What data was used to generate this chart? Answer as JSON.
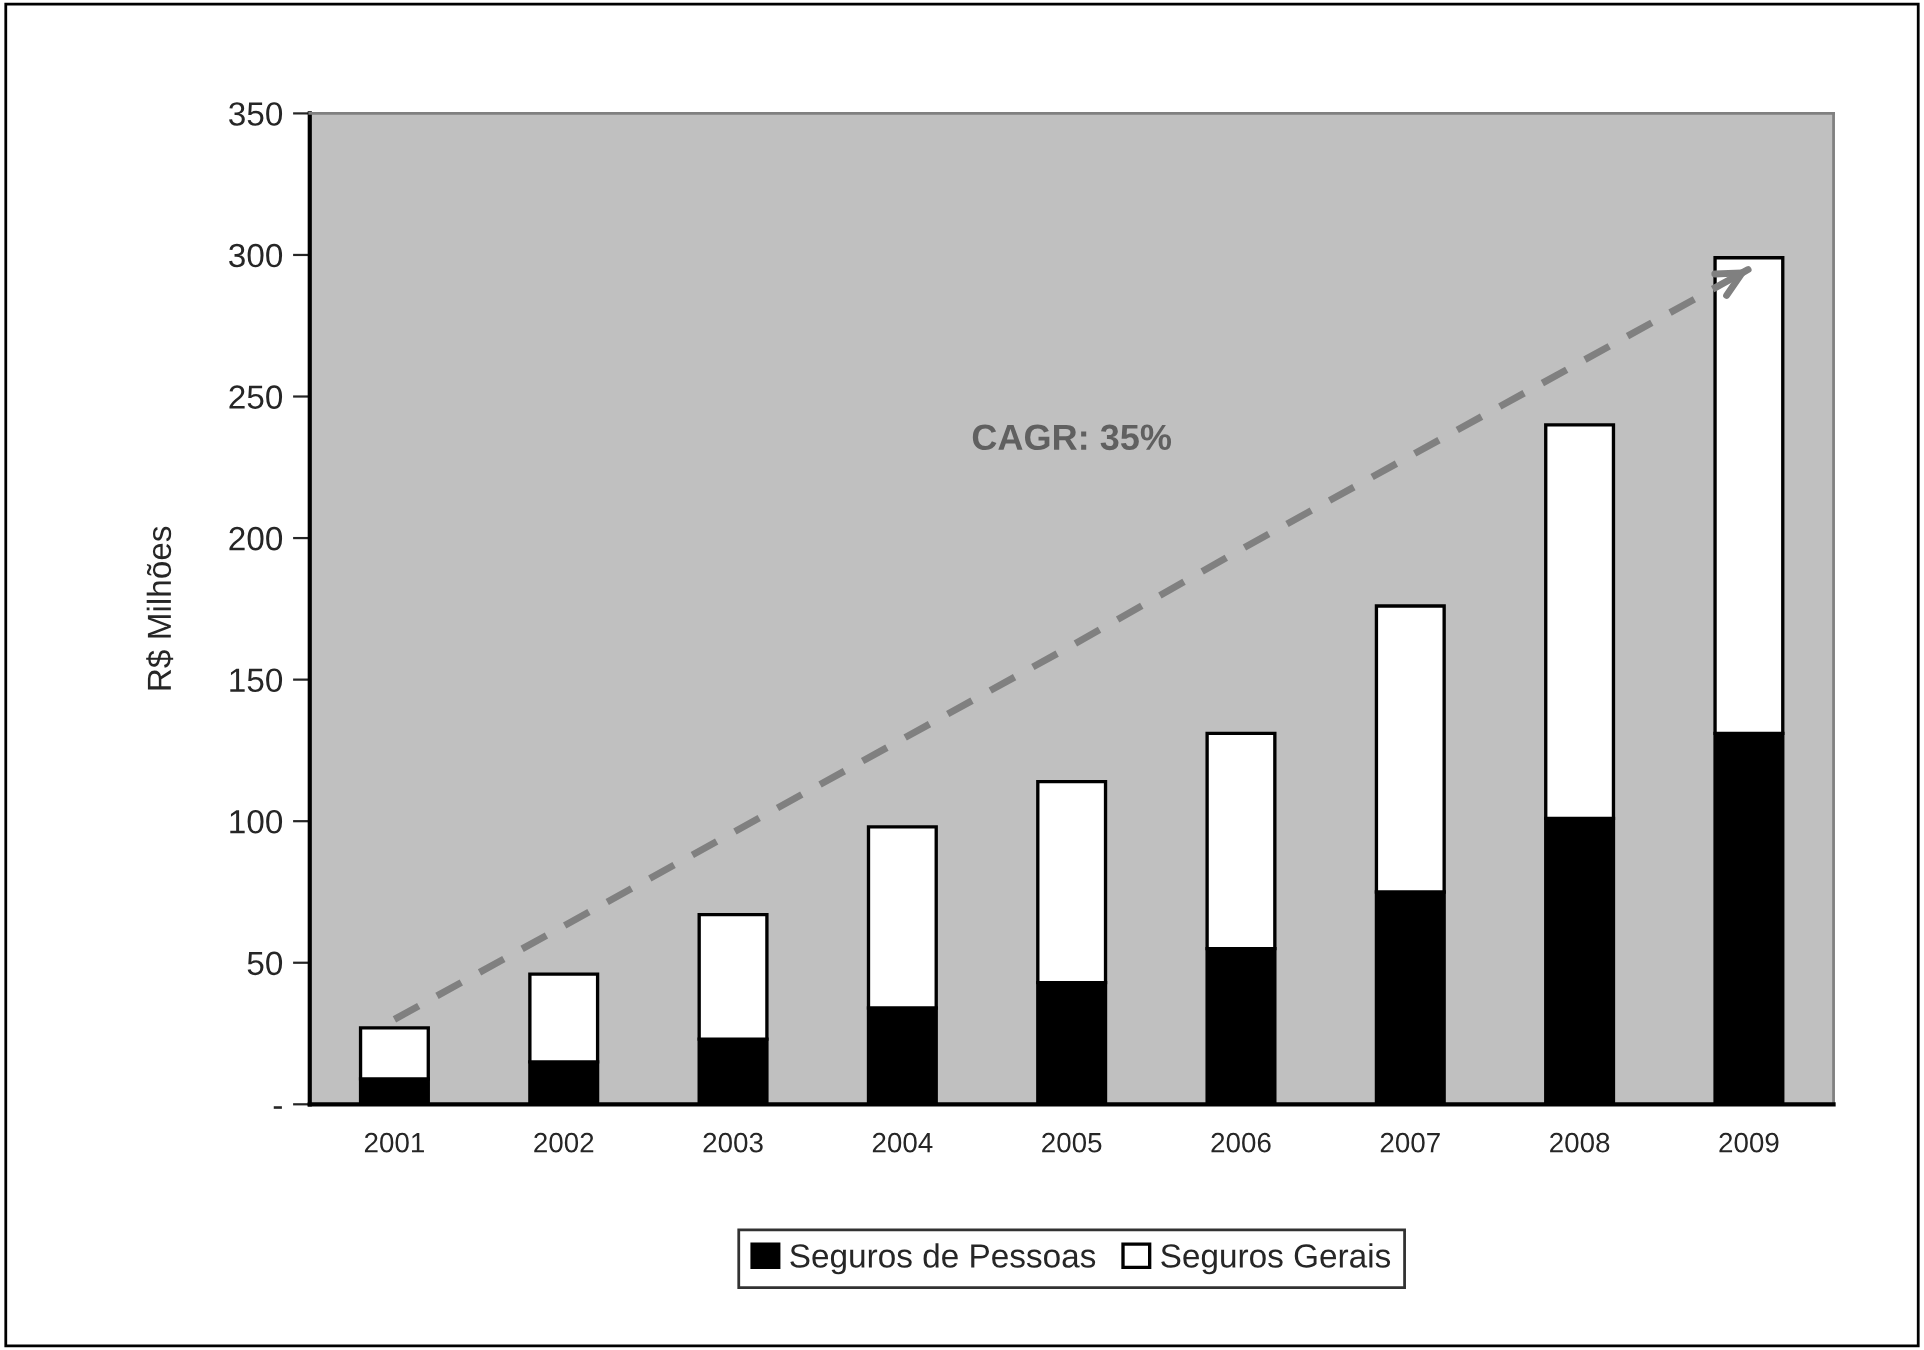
{
  "chart_data": {
    "type": "bar",
    "stacked": true,
    "ylabel": "R$ Milhões",
    "categories": [
      "2001",
      "2002",
      "2003",
      "2004",
      "2005",
      "2006",
      "2007",
      "2008",
      "2009"
    ],
    "series": [
      {
        "name": "Seguros de Pessoas",
        "color": "#000000",
        "values": [
          9,
          15,
          23,
          34,
          43,
          55,
          75,
          101,
          131
        ]
      },
      {
        "name": "Seguros Gerais",
        "color": "#ffffff",
        "values": [
          18,
          31,
          44,
          64,
          71,
          76,
          101,
          139,
          168
        ]
      },
      {
        "type": "line",
        "color": "#808080",
        "values": [
          30,
          63,
          96,
          129,
          162,
          196,
          229,
          262,
          295
        ],
        "line_style": "dashed",
        "marker": "none"
      }
    ],
    "ylim": [
      0,
      350
    ],
    "yticks": [
      {
        "value": 0,
        "label": "-"
      },
      50,
      100,
      150,
      200,
      250,
      300,
      350
    ],
    "annotations": [
      "CAGR: 35%"
    ],
    "grid": false,
    "legend": "bottom"
  }
}
